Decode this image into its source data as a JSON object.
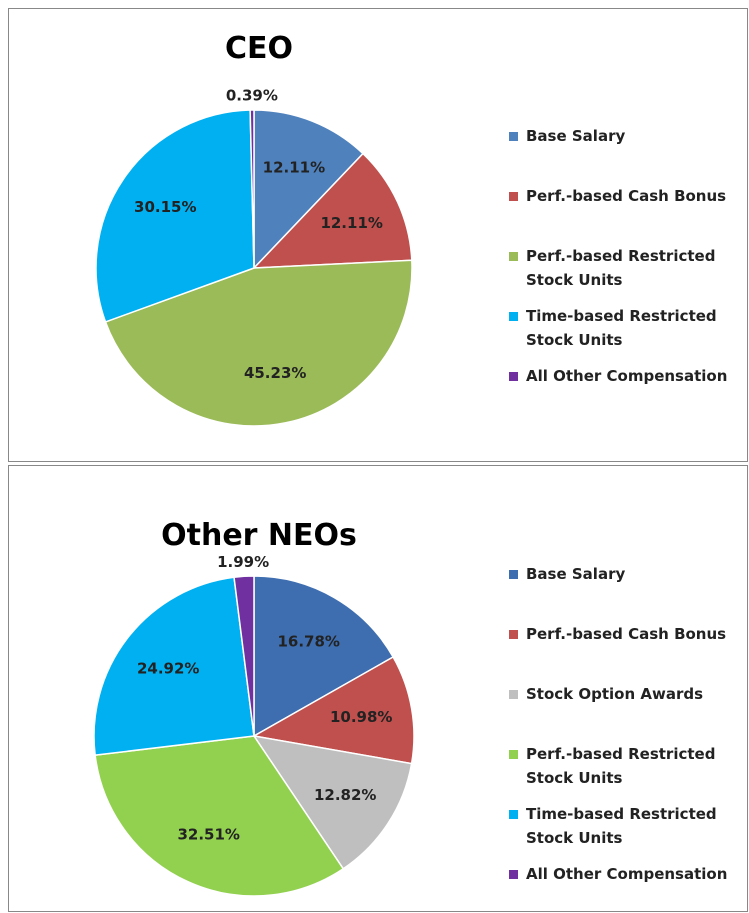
{
  "chart_data": [
    {
      "type": "pie",
      "title": "CEO",
      "categories": [
        "Base Salary",
        "Perf.-based Cash Bonus",
        "Perf.-based Restricted Stock Units",
        "Time-based Restricted Stock Units",
        "All Other Compensation"
      ],
      "values": [
        12.11,
        12.11,
        45.23,
        30.15,
        0.39
      ],
      "value_labels": [
        "12.11%",
        "12.11%",
        "45.23%",
        "30.15%",
        "0.39%"
      ],
      "colors": [
        "#4f81bd",
        "#c0504d",
        "#9bbb59",
        "#00b0f0",
        "#7030a0"
      ]
    },
    {
      "type": "pie",
      "title": "Other NEOs",
      "categories": [
        "Base Salary",
        "Perf.-based Cash Bonus",
        "Stock Option Awards",
        "Perf.-based Restricted Stock Units",
        "Time-based Restricted Stock Units",
        "All Other Compensation"
      ],
      "values": [
        16.78,
        10.98,
        12.82,
        32.51,
        24.92,
        1.99
      ],
      "value_labels": [
        "16.78%",
        "10.98%",
        "12.82%",
        "32.51%",
        "24.92%",
        "1.99%"
      ],
      "colors": [
        "#3e6eb0",
        "#c0504d",
        "#bfbfbf",
        "#92d050",
        "#00b0f0",
        "#7030a0"
      ]
    }
  ]
}
